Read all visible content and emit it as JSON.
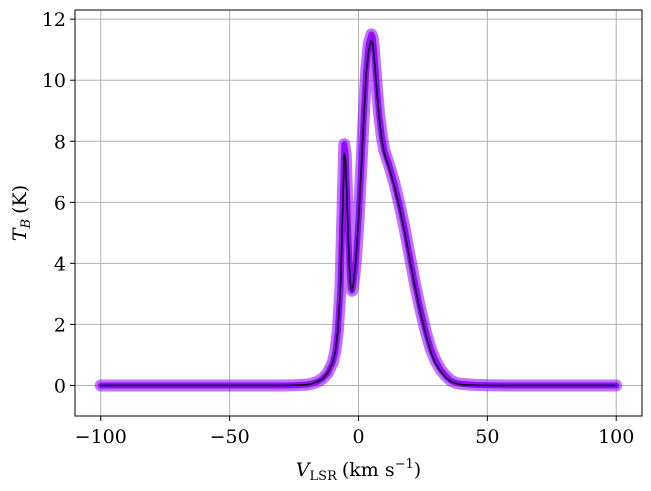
{
  "chart_data": {
    "type": "line",
    "xlabel": "V",
    "xlabel_subscript": "LSR",
    "xlabel_unit": "(km s",
    "xlabel_unit_exp": "−1",
    "xlabel_unit_close": ")",
    "ylabel": "T",
    "ylabel_subscript": "B",
    "ylabel_unit": "(K)",
    "xlim": [
      -110,
      110
    ],
    "ylim": [
      -1,
      12.3
    ],
    "xticks": [
      -100,
      -50,
      0,
      50,
      100
    ],
    "xtick_labels": [
      "−100",
      "−50",
      "0",
      "50",
      "100"
    ],
    "yticks": [
      0,
      2,
      4,
      6,
      8,
      10,
      12
    ],
    "ytick_labels": [
      "0",
      "2",
      "4",
      "6",
      "8",
      "10",
      "12"
    ],
    "grid": true,
    "series": [
      {
        "role": "model-samples",
        "color": "#8B00FF",
        "x": [
          -100,
          -90,
          -80,
          -70,
          -60,
          -50,
          -40,
          -30,
          -25,
          -20,
          -18,
          -16,
          -14,
          -12,
          -10,
          -9,
          -8,
          -7,
          -6,
          -5.5,
          -5,
          -4.5,
          -4,
          -3.5,
          -3,
          -2.5,
          -2,
          -1,
          0,
          1,
          2,
          3,
          4,
          5,
          5.5,
          6,
          7,
          8,
          9,
          10,
          12,
          14,
          16,
          18,
          20,
          22,
          24,
          26,
          28,
          30,
          32,
          34,
          36,
          38,
          40,
          45,
          50,
          60,
          70,
          80,
          90,
          100
        ],
        "y": [
          0,
          0,
          0,
          0,
          0,
          0,
          0,
          0,
          0.01,
          0.03,
          0.06,
          0.12,
          0.22,
          0.4,
          0.75,
          1.1,
          1.8,
          3.2,
          6.3,
          7.9,
          7.6,
          6.4,
          5.0,
          3.9,
          3.2,
          3.1,
          3.3,
          4.1,
          5.4,
          7.0,
          8.8,
          10.3,
          11.2,
          11.5,
          11.4,
          11.0,
          9.9,
          8.9,
          8.2,
          7.7,
          7.2,
          6.6,
          5.9,
          5.1,
          4.2,
          3.3,
          2.5,
          1.8,
          1.2,
          0.8,
          0.5,
          0.3,
          0.15,
          0.08,
          0.05,
          0.02,
          0.01,
          0,
          0,
          0,
          0,
          0
        ]
      },
      {
        "role": "observed",
        "color": "#000000",
        "x": [
          -100,
          -90,
          -80,
          -70,
          -60,
          -50,
          -40,
          -30,
          -25,
          -20,
          -18,
          -16,
          -14,
          -12,
          -10,
          -9,
          -8,
          -7,
          -6,
          -5.5,
          -5,
          -4.5,
          -4,
          -3.5,
          -3,
          -2.5,
          -2,
          -1,
          0,
          1,
          2,
          3,
          4,
          5,
          5.5,
          6,
          7,
          8,
          9,
          10,
          12,
          14,
          16,
          18,
          20,
          22,
          24,
          26,
          28,
          30,
          32,
          34,
          36,
          38,
          40,
          45,
          50,
          60,
          70,
          80,
          90,
          100
        ],
        "y": [
          0,
          0,
          0,
          0,
          0,
          0,
          0,
          0,
          0.01,
          0.03,
          0.06,
          0.12,
          0.22,
          0.4,
          0.75,
          1.1,
          1.8,
          3.2,
          6.1,
          7.6,
          7.4,
          6.2,
          4.9,
          3.8,
          3.2,
          3.1,
          3.3,
          4.1,
          5.4,
          7.0,
          8.7,
          10.2,
          11.0,
          11.3,
          11.2,
          10.8,
          9.8,
          8.8,
          8.1,
          7.6,
          7.1,
          6.5,
          5.8,
          5.0,
          4.1,
          3.2,
          2.4,
          1.7,
          1.1,
          0.7,
          0.45,
          0.25,
          0.12,
          0.06,
          0.03,
          0.01,
          0,
          0,
          0,
          0,
          0,
          0
        ]
      }
    ]
  }
}
